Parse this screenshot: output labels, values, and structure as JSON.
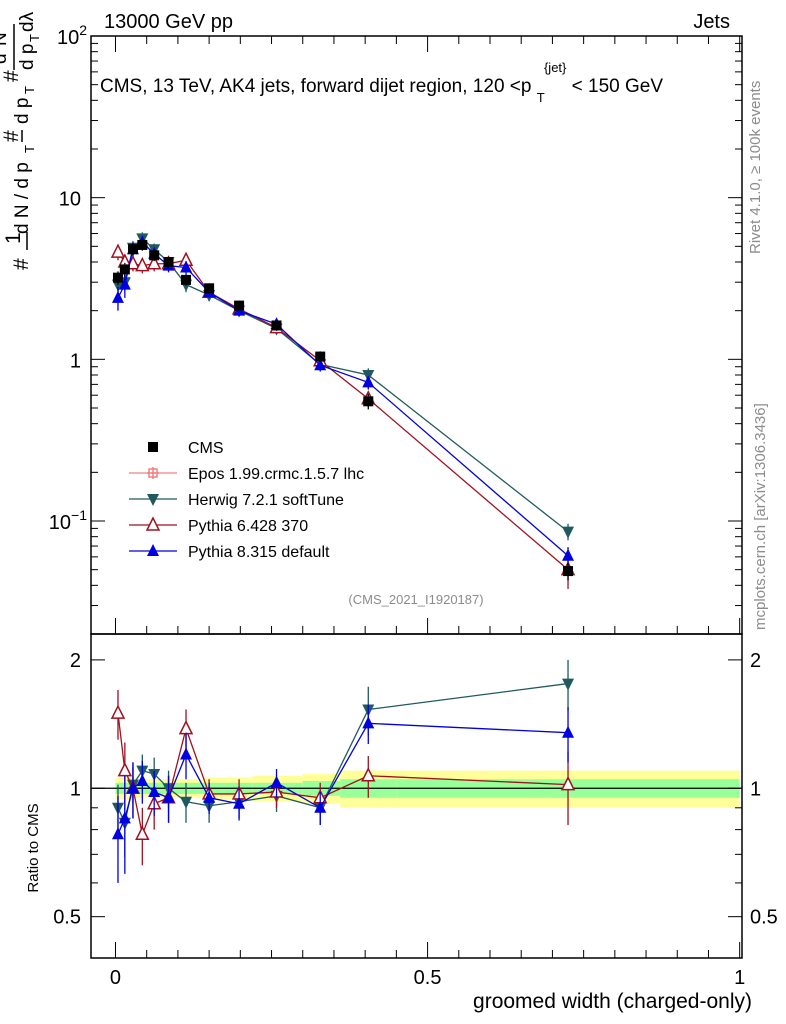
{
  "header": {
    "energy": "13000 GeV pp",
    "category": "Jets",
    "title_main": "CMS, 13 TeV, AK4 jets, forward dijet region, 120 <p",
    "title_sub": "T",
    "title_sup": "{jet}",
    "title_end": "< 150 GeV"
  },
  "side_labels": {
    "rivet": "Rivet 4.1.0, ≥ 100k events",
    "mcplots": "mcplots.cern.ch [arXiv:1306.3436]"
  },
  "watermark": "(CMS_2021_I1920187)",
  "ratio_ylabel": "Ratio to CMS",
  "chart_data": {
    "type": "scatter",
    "xlabel": "groomed width (charged-only)",
    "ylabel": "1/N dN/dp_T d^2N/dp_T dlambda",
    "xlim": [
      -0.02,
      1.0
    ],
    "ylim": [
      0.02,
      100
    ],
    "yscale": "log",
    "ratio_ylim": [
      0.4,
      2.3
    ],
    "x_ticks": [
      {
        "value": 0,
        "label": "0"
      },
      {
        "value": 0.5,
        "label": "0.5"
      },
      {
        "value": 1,
        "label": "1"
      }
    ],
    "y_ticks": [
      {
        "value": 100,
        "base": "10",
        "exp": "2"
      },
      {
        "value": 10,
        "base": "10",
        "exp": ""
      },
      {
        "value": 1,
        "base": "1",
        "exp": ""
      },
      {
        "value": 0.1,
        "base": "10",
        "exp": "−1"
      }
    ],
    "ratio_ticks": [
      {
        "value": 2,
        "label": "2"
      },
      {
        "value": 1,
        "label": "1"
      },
      {
        "value": 0.5,
        "label": "0.5"
      }
    ],
    "x": [
      0.004,
      0.015,
      0.028,
      0.043,
      0.062,
      0.085,
      0.113,
      0.15,
      0.198,
      0.258,
      0.328,
      0.405,
      0.725
    ],
    "bands": [
      {
        "x0": 0.0,
        "x1": 0.03,
        "inner": 0.03,
        "outer": 0.06
      },
      {
        "x0": 0.03,
        "x1": 0.07,
        "inner": 0.03,
        "outer": 0.05
      },
      {
        "x0": 0.07,
        "x1": 0.14,
        "inner": 0.03,
        "outer": 0.05
      },
      {
        "x0": 0.14,
        "x1": 0.22,
        "inner": 0.03,
        "outer": 0.06
      },
      {
        "x0": 0.22,
        "x1": 0.3,
        "inner": 0.03,
        "outer": 0.07
      },
      {
        "x0": 0.3,
        "x1": 0.36,
        "inner": 0.04,
        "outer": 0.08
      },
      {
        "x0": 0.36,
        "x1": 0.45,
        "inner": 0.05,
        "outer": 0.1
      },
      {
        "x0": 0.45,
        "x1": 1.0,
        "inner": 0.05,
        "outer": 0.1
      }
    ],
    "series": [
      {
        "name": "CMS",
        "color": "#000000",
        "marker": "square",
        "values": [
          3.2,
          3.6,
          4.8,
          5.1,
          4.4,
          4.0,
          3.1,
          2.75,
          2.15,
          1.62,
          1.04,
          0.55,
          0.049
        ],
        "errors": [
          0.3,
          0.35,
          0.4,
          0.4,
          0.35,
          0.3,
          0.25,
          0.2,
          0.15,
          0.12,
          0.08,
          0.06,
          0.006
        ],
        "ratio": null
      },
      {
        "name": "Epos 1.99.crmc.1.5.7 lhc",
        "color": "#f08080",
        "marker": "cross",
        "values": [],
        "errors": [],
        "ratio": null
      },
      {
        "name": "Herwig 7.2.1 softTune",
        "color": "#1f5a5f",
        "marker": "triangle-down",
        "values": [
          2.9,
          3.0,
          4.9,
          5.6,
          4.8,
          4.0,
          2.9,
          2.5,
          2.0,
          1.55,
          0.93,
          0.8,
          0.086
        ],
        "errors": [
          0.3,
          0.35,
          0.5,
          0.5,
          0.4,
          0.35,
          0.3,
          0.2,
          0.15,
          0.12,
          0.08,
          0.08,
          0.01
        ],
        "ratio": [
          0.9,
          0.83,
          1.02,
          1.1,
          1.08,
          1.0,
          0.93,
          0.91,
          0.93,
          0.96,
          0.9,
          1.53,
          1.76
        ],
        "ratio_errors": [
          0.12,
          0.14,
          0.1,
          0.1,
          0.1,
          0.1,
          0.1,
          0.08,
          0.08,
          0.08,
          0.08,
          0.2,
          0.24
        ]
      },
      {
        "name": "Pythia 6.428 370",
        "color": "#a01020",
        "marker": "triangle-open",
        "values": [
          4.6,
          4.0,
          3.9,
          3.8,
          3.9,
          3.9,
          4.1,
          2.6,
          2.05,
          1.57,
          0.98,
          0.57,
          0.05
        ],
        "errors": [
          0.5,
          0.45,
          0.4,
          0.4,
          0.4,
          0.35,
          0.35,
          0.2,
          0.15,
          0.12,
          0.08,
          0.06,
          0.012
        ],
        "ratio": [
          1.5,
          1.1,
          1.0,
          0.78,
          0.92,
          0.95,
          1.38,
          0.97,
          0.97,
          0.98,
          0.95,
          1.07,
          1.02
        ],
        "ratio_errors": [
          0.2,
          0.18,
          0.15,
          0.12,
          0.12,
          0.12,
          0.15,
          0.08,
          0.08,
          0.08,
          0.08,
          0.12,
          0.2
        ]
      },
      {
        "name": "Pythia 8.315 default",
        "color": "#0000e0",
        "marker": "triangle-up",
        "values": [
          2.4,
          2.9,
          4.8,
          5.3,
          4.5,
          3.8,
          3.7,
          2.6,
          2.0,
          1.65,
          0.92,
          0.72,
          0.061
        ],
        "errors": [
          0.4,
          0.5,
          0.5,
          0.5,
          0.4,
          0.35,
          0.35,
          0.2,
          0.15,
          0.12,
          0.08,
          0.07,
          0.008
        ],
        "ratio": [
          0.78,
          0.85,
          1.0,
          1.04,
          0.98,
          0.95,
          1.2,
          0.95,
          0.92,
          1.03,
          0.9,
          1.42,
          1.35
        ],
        "ratio_errors": [
          0.18,
          0.22,
          0.15,
          0.12,
          0.12,
          0.12,
          0.15,
          0.08,
          0.08,
          0.08,
          0.08,
          0.15,
          0.2
        ]
      }
    ]
  }
}
